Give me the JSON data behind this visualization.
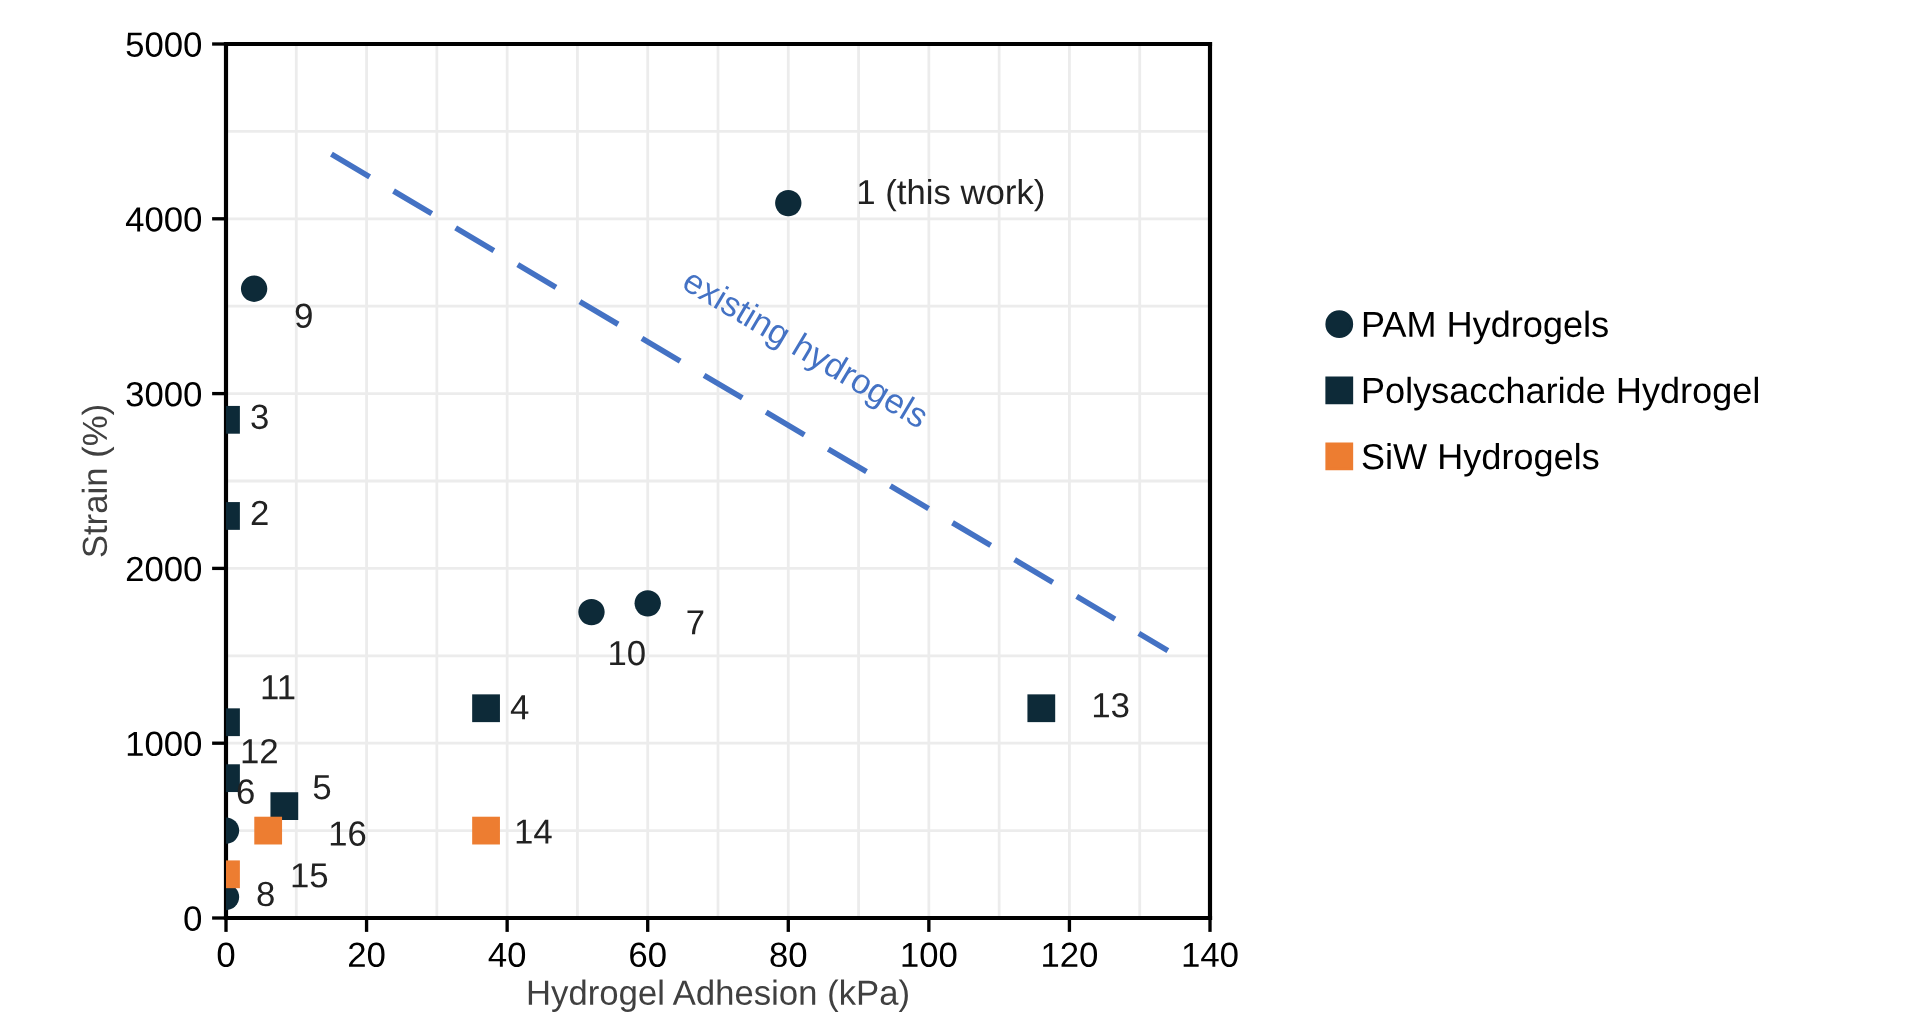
{
  "chart_data": {
    "type": "scatter",
    "xlabel": "Hydrogel Adhesion (kPa)",
    "ylabel": "Strain (%)",
    "series": [
      {
        "name": "PAM Hydrogels",
        "color": "#0d2a38",
        "marker": "circle",
        "x": [
          80,
          4,
          52,
          60,
          0,
          0
        ],
        "values": [
          4090,
          3600,
          1750,
          1800,
          120,
          500
        ]
      },
      {
        "name": "Polysaccharide Hydrogel",
        "color": "#0d2a38",
        "marker": "square",
        "x": [
          0,
          0,
          0,
          0,
          8.3,
          37,
          116
        ],
        "values": [
          2850,
          2300,
          1120,
          800,
          640,
          1200,
          1200
        ]
      },
      {
        "name": "SiW Hydrogels",
        "color": "#ed7d31",
        "marker": "square",
        "x": [
          0,
          6,
          37
        ],
        "values": [
          250,
          500,
          500
        ]
      },
      {
        "name": "existing hydrogels",
        "type": "line",
        "color": "#4472c4",
        "line_style": "dashed",
        "x": [
          15,
          134
        ],
        "values": [
          4370,
          1530
        ]
      }
    ],
    "annotations": [
      {
        "text": "1 (this work)",
        "x": 80,
        "y": 4090
      },
      {
        "text": "9",
        "x": 4,
        "y": 3600
      },
      {
        "text": "3",
        "x": 0,
        "y": 2850
      },
      {
        "text": "2",
        "x": 0,
        "y": 2300
      },
      {
        "text": "11",
        "x": 0,
        "y": 1120
      },
      {
        "text": "12",
        "x": 0,
        "y": 800
      },
      {
        "text": "6",
        "x": 0,
        "y": 500
      },
      {
        "text": "5",
        "x": 8.3,
        "y": 640
      },
      {
        "text": "16",
        "x": 6,
        "y": 500
      },
      {
        "text": "15",
        "x": 0,
        "y": 250
      },
      {
        "text": "8",
        "x": 0,
        "y": 120
      },
      {
        "text": "4",
        "x": 37,
        "y": 1200
      },
      {
        "text": "14",
        "x": 37,
        "y": 500
      },
      {
        "text": "10",
        "x": 52,
        "y": 1750
      },
      {
        "text": "7",
        "x": 60,
        "y": 1800
      },
      {
        "text": "13",
        "x": 116,
        "y": 1200
      }
    ],
    "xlim": [
      0,
      140
    ],
    "xticks": [
      0,
      20,
      40,
      60,
      80,
      100,
      120,
      140
    ],
    "ylim": [
      0,
      5000
    ],
    "yticks": [
      0,
      1000,
      2000,
      3000,
      4000,
      5000
    ],
    "grid": true,
    "legend": "right"
  }
}
